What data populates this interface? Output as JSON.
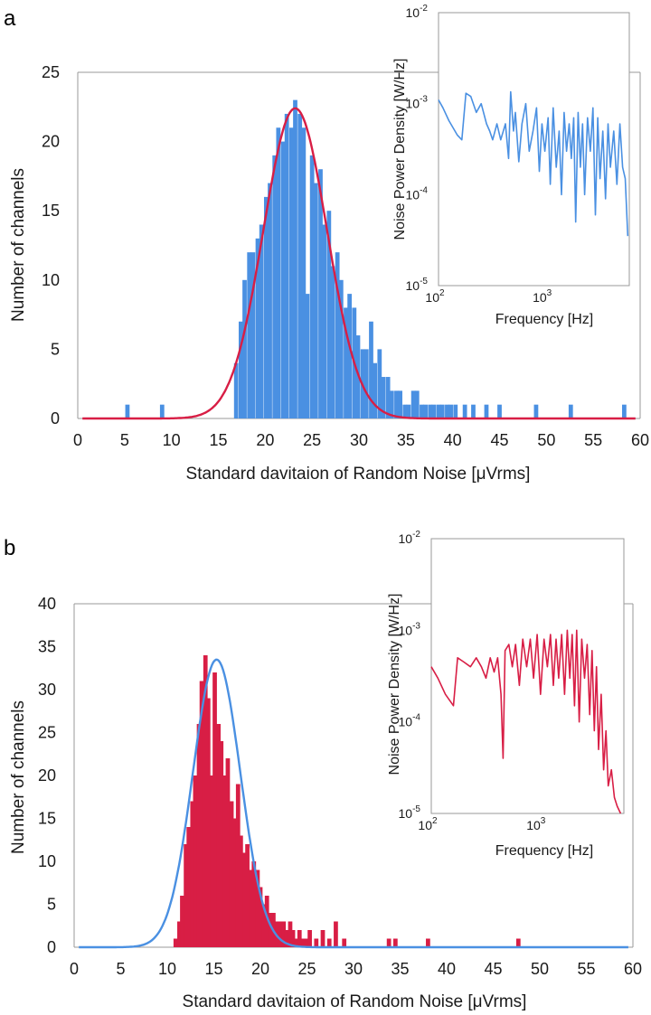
{
  "colors": {
    "blue": "#4a90e2",
    "red": "#d81e45",
    "axis": "#9a9a9a",
    "text": "#1a1a1a"
  },
  "chart_data": [
    {
      "panel": "a",
      "type": "bar",
      "xlabel": "Standard davitaion of Random Noise [μVrms]",
      "ylabel": "Number of channels",
      "xlim": [
        0,
        60
      ],
      "ylim": [
        0,
        25
      ],
      "xticks": [
        0,
        5,
        10,
        15,
        20,
        25,
        30,
        35,
        40,
        45,
        50,
        55,
        60
      ],
      "xtick_labels": [
        "0",
        "5",
        "10",
        "15",
        "20",
        "25",
        "30",
        "35",
        "40",
        "45",
        "50",
        "55",
        "60"
      ],
      "yticks": [
        0,
        5,
        10,
        15,
        20,
        25
      ],
      "ytick_labels": [
        "0",
        "5",
        "10",
        "15",
        "20",
        "25"
      ],
      "bar_color": "#4a90e2",
      "bars": [
        [
          5.3,
          1
        ],
        [
          9.0,
          1
        ],
        [
          16.9,
          4
        ],
        [
          17.4,
          7
        ],
        [
          17.8,
          10
        ],
        [
          18.3,
          12
        ],
        [
          18.7,
          12
        ],
        [
          19.2,
          13
        ],
        [
          19.6,
          14
        ],
        [
          20.1,
          16
        ],
        [
          20.5,
          17
        ],
        [
          21.0,
          19
        ],
        [
          21.4,
          21
        ],
        [
          21.9,
          20
        ],
        [
          22.3,
          22
        ],
        [
          22.8,
          21
        ],
        [
          23.2,
          23
        ],
        [
          23.7,
          22
        ],
        [
          24.1,
          21
        ],
        [
          24.5,
          9
        ],
        [
          25.0,
          19
        ],
        [
          25.4,
          17
        ],
        [
          25.9,
          18
        ],
        [
          26.3,
          14
        ],
        [
          26.8,
          15
        ],
        [
          27.2,
          11
        ],
        [
          27.7,
          12
        ],
        [
          28.1,
          10
        ],
        [
          28.6,
          8
        ],
        [
          29.0,
          9
        ],
        [
          29.5,
          8
        ],
        [
          29.9,
          6
        ],
        [
          30.4,
          5
        ],
        [
          30.8,
          5
        ],
        [
          31.3,
          7
        ],
        [
          31.7,
          4
        ],
        [
          32.2,
          5
        ],
        [
          32.6,
          3
        ],
        [
          33.1,
          3
        ],
        [
          33.5,
          2
        ],
        [
          34.0,
          2
        ],
        [
          34.4,
          2
        ],
        [
          34.9,
          1
        ],
        [
          35.3,
          1
        ],
        [
          35.8,
          2
        ],
        [
          36.2,
          2
        ],
        [
          36.7,
          1
        ],
        [
          37.1,
          1
        ],
        [
          37.6,
          1
        ],
        [
          38.0,
          1
        ],
        [
          38.5,
          1
        ],
        [
          38.9,
          1
        ],
        [
          39.4,
          1
        ],
        [
          39.8,
          1
        ],
        [
          40.3,
          1
        ],
        [
          41.3,
          1
        ],
        [
          42.2,
          1
        ],
        [
          43.6,
          1
        ],
        [
          45.0,
          1
        ],
        [
          48.9,
          1
        ],
        [
          52.6,
          1
        ],
        [
          58.3,
          1
        ]
      ],
      "fit": {
        "mean": 23.2,
        "sd": 3.4,
        "peak": 22.4,
        "color": "#d81e45"
      },
      "inset": {
        "type": "line",
        "xlabel": "Frequency [Hz]",
        "ylabel": "Noise Power Density [W/Hz]",
        "x_scale": "log",
        "y_scale": "log",
        "xlim": [
          100,
          6000
        ],
        "ylim": [
          1e-05,
          0.01
        ],
        "xtick_labels": [
          [
            "10",
            "2"
          ],
          [
            "10",
            "3"
          ]
        ],
        "ytick_labels": [
          [
            "10",
            "-5"
          ],
          [
            "10",
            "-4"
          ],
          [
            "10",
            "-3"
          ],
          [
            "10",
            "-2"
          ]
        ],
        "color": "#4a90e2",
        "points": [
          [
            100,
            0.0011
          ],
          [
            110,
            0.0009
          ],
          [
            125,
            0.00065
          ],
          [
            150,
            0.00045
          ],
          [
            165,
            0.0004
          ],
          [
            180,
            0.0013
          ],
          [
            200,
            0.0012
          ],
          [
            225,
            0.0008
          ],
          [
            250,
            0.001
          ],
          [
            280,
            0.0006
          ],
          [
            300,
            0.0005
          ],
          [
            320,
            0.0004
          ],
          [
            350,
            0.0006
          ],
          [
            380,
            0.0004
          ],
          [
            420,
            0.0006
          ],
          [
            450,
            0.00025
          ],
          [
            470,
            0.00135
          ],
          [
            500,
            0.0005
          ],
          [
            520,
            0.0008
          ],
          [
            560,
            0.00023
          ],
          [
            600,
            0.0006
          ],
          [
            650,
            0.001
          ],
          [
            700,
            0.0003
          ],
          [
            760,
            0.0005
          ],
          [
            820,
            0.0009
          ],
          [
            870,
            0.00018
          ],
          [
            920,
            0.0006
          ],
          [
            980,
            0.0003
          ],
          [
            1050,
            0.0007
          ],
          [
            1100,
            0.00013
          ],
          [
            1170,
            0.0009
          ],
          [
            1250,
            0.0002
          ],
          [
            1330,
            0.0005
          ],
          [
            1400,
            0.0001
          ],
          [
            1480,
            0.0008
          ],
          [
            1560,
            0.0003
          ],
          [
            1650,
            0.0006
          ],
          [
            1730,
            0.00025
          ],
          [
            1820,
            0.0007
          ],
          [
            1900,
            5e-05
          ],
          [
            2000,
            0.0008
          ],
          [
            2100,
            0.0002
          ],
          [
            2200,
            0.0006
          ],
          [
            2300,
            0.0001
          ],
          [
            2450,
            0.0007
          ],
          [
            2600,
            0.0003
          ],
          [
            2750,
            0.0009
          ],
          [
            2900,
            6e-05
          ],
          [
            3050,
            0.0007
          ],
          [
            3200,
            0.00015
          ],
          [
            3400,
            0.0005
          ],
          [
            3600,
            9e-05
          ],
          [
            3800,
            0.0006
          ],
          [
            4000,
            0.0002
          ],
          [
            4300,
            0.0005
          ],
          [
            4600,
            0.00013
          ],
          [
            4900,
            0.0006
          ],
          [
            5200,
            0.0002
          ],
          [
            5500,
            0.00015
          ],
          [
            5800,
            3.5e-05
          ]
        ]
      }
    },
    {
      "panel": "b",
      "type": "bar",
      "xlabel": "Standard davitaion of Random Noise [μVrms]",
      "ylabel": "Number of channels",
      "xlim": [
        0,
        60
      ],
      "ylim": [
        0,
        40
      ],
      "xticks": [
        0,
        5,
        10,
        15,
        20,
        25,
        30,
        35,
        40,
        45,
        50,
        55,
        60
      ],
      "xtick_labels": [
        "0",
        "5",
        "10",
        "15",
        "20",
        "25",
        "30",
        "35",
        "40",
        "45",
        "50",
        "55",
        "60"
      ],
      "yticks": [
        0,
        5,
        10,
        15,
        20,
        25,
        30,
        35,
        40
      ],
      "ytick_labels": [
        "0",
        "5",
        "10",
        "15",
        "20",
        "25",
        "30",
        "35",
        "40"
      ],
      "bar_color": "#d81e45",
      "bars": [
        [
          10.9,
          1
        ],
        [
          11.3,
          3
        ],
        [
          11.6,
          6
        ],
        [
          12.0,
          12
        ],
        [
          12.3,
          14
        ],
        [
          12.7,
          17
        ],
        [
          13.0,
          20
        ],
        [
          13.4,
          26
        ],
        [
          13.7,
          31
        ],
        [
          14.1,
          34
        ],
        [
          14.4,
          29
        ],
        [
          14.8,
          20
        ],
        [
          15.1,
          32
        ],
        [
          15.5,
          26
        ],
        [
          15.8,
          24
        ],
        [
          16.2,
          20
        ],
        [
          16.5,
          22
        ],
        [
          16.9,
          17
        ],
        [
          17.2,
          15
        ],
        [
          17.6,
          19
        ],
        [
          17.9,
          13
        ],
        [
          18.3,
          11
        ],
        [
          18.6,
          12
        ],
        [
          19.0,
          9
        ],
        [
          19.3,
          10
        ],
        [
          19.7,
          9
        ],
        [
          20.0,
          7
        ],
        [
          20.4,
          5
        ],
        [
          20.7,
          6
        ],
        [
          21.1,
          4
        ],
        [
          21.4,
          4
        ],
        [
          21.8,
          3
        ],
        [
          22.1,
          3
        ],
        [
          22.5,
          3
        ],
        [
          22.8,
          2
        ],
        [
          23.2,
          3
        ],
        [
          23.5,
          2
        ],
        [
          23.9,
          1
        ],
        [
          24.2,
          2
        ],
        [
          24.6,
          1
        ],
        [
          25.0,
          1
        ],
        [
          25.3,
          2
        ],
        [
          26.0,
          1
        ],
        [
          26.7,
          2
        ],
        [
          27.4,
          1
        ],
        [
          28.1,
          3
        ],
        [
          29.0,
          1
        ],
        [
          33.8,
          1
        ],
        [
          34.5,
          1
        ],
        [
          38.0,
          1
        ],
        [
          47.7,
          1
        ]
      ],
      "fit": {
        "mean": 15.3,
        "sd": 2.55,
        "peak": 33.5,
        "color": "#4a90e2"
      },
      "inset": {
        "type": "line",
        "xlabel": "Frequency [Hz]",
        "ylabel": "Noise Power Density [W/Hz]",
        "x_scale": "log",
        "y_scale": "log",
        "xlim": [
          100,
          6000
        ],
        "ylim": [
          1e-05,
          0.01
        ],
        "xtick_labels": [
          [
            "10",
            "2"
          ],
          [
            "10",
            "3"
          ]
        ],
        "ytick_labels": [
          [
            "10",
            "-5"
          ],
          [
            "10",
            "-4"
          ],
          [
            "10",
            "-3"
          ],
          [
            "10",
            "-2"
          ]
        ],
        "color": "#d81e45",
        "points": [
          [
            100,
            0.0004
          ],
          [
            115,
            0.0003
          ],
          [
            135,
            0.0002
          ],
          [
            160,
            0.00015
          ],
          [
            175,
            0.0005
          ],
          [
            200,
            0.00045
          ],
          [
            230,
            0.0004
          ],
          [
            260,
            0.0005
          ],
          [
            290,
            0.0004
          ],
          [
            320,
            0.0003
          ],
          [
            350,
            0.0005
          ],
          [
            380,
            0.00035
          ],
          [
            410,
            0.0005
          ],
          [
            440,
            0.0002
          ],
          [
            460,
            4e-05
          ],
          [
            480,
            0.0006
          ],
          [
            520,
            0.0007
          ],
          [
            560,
            0.0004
          ],
          [
            600,
            0.0007
          ],
          [
            650,
            0.00025
          ],
          [
            700,
            0.0008
          ],
          [
            760,
            0.0004
          ],
          [
            820,
            0.0008
          ],
          [
            880,
            0.0003
          ],
          [
            950,
            0.0009
          ],
          [
            1020,
            0.0002
          ],
          [
            1100,
            0.0008
          ],
          [
            1180,
            0.0004
          ],
          [
            1260,
            0.0009
          ],
          [
            1340,
            0.00025
          ],
          [
            1420,
            0.0008
          ],
          [
            1500,
            0.0003
          ],
          [
            1600,
            0.0009
          ],
          [
            1700,
            0.0002
          ],
          [
            1800,
            0.001
          ],
          [
            1900,
            0.0003
          ],
          [
            2000,
            0.0009
          ],
          [
            2100,
            0.00015
          ],
          [
            2200,
            0.001
          ],
          [
            2320,
            0.0001
          ],
          [
            2450,
            0.0008
          ],
          [
            2600,
            0.0003
          ],
          [
            2750,
            0.0007
          ],
          [
            2900,
            0.00012
          ],
          [
            3050,
            0.0006
          ],
          [
            3200,
            8e-05
          ],
          [
            3350,
            0.0004
          ],
          [
            3500,
            5e-05
          ],
          [
            3700,
            0.0002
          ],
          [
            3900,
            3e-05
          ],
          [
            4100,
            8e-05
          ],
          [
            4300,
            2e-05
          ],
          [
            4600,
            3e-05
          ],
          [
            4900,
            1.5e-05
          ],
          [
            5200,
            1.2e-05
          ],
          [
            5600,
            1e-05
          ]
        ]
      }
    }
  ]
}
